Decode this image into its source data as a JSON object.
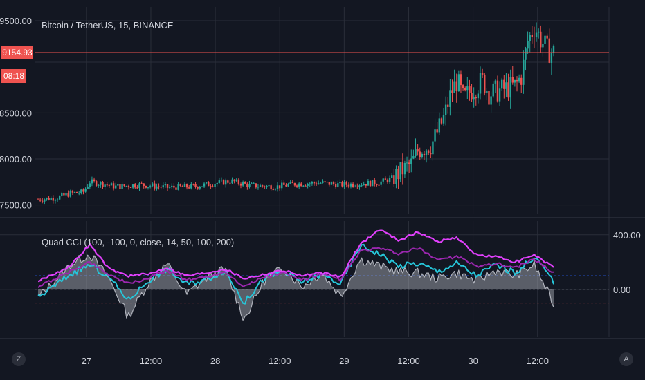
{
  "price_pane": {
    "title": "Bitcoin / TetherUS, 15, BINANCE",
    "last_price_label": "9154.93",
    "countdown_label": "08:18"
  },
  "indicator_pane": {
    "title": "Quad CCI (100, -100, 0, close, 14, 50, 100, 200)"
  },
  "scale_buttons": {
    "left": "Z",
    "right": "A"
  },
  "colors": {
    "background": "#131722",
    "grid": "#2a2e39",
    "up_candle": "#26a69a",
    "down_candle": "#ef5350",
    "last_price_line": "#ef5350",
    "cci_14": "#b2b5be",
    "cci_50": "#26c6da",
    "cci_100": "#9c27b0",
    "cci_200": "#e040fb"
  },
  "chart_data": [
    {
      "type": "candlestick",
      "title": "Bitcoin / TetherUS, 15, BINANCE",
      "x_tick_labels": [
        "27",
        "12:00",
        "28",
        "12:00",
        "29",
        "12:00",
        "30",
        "12:00"
      ],
      "y_tick_labels": [
        "9500.00",
        "8500.00",
        "8000.00",
        "7500.00"
      ],
      "y_ticks": [
        9500,
        8500,
        8000,
        7500
      ],
      "ylim": [
        7400,
        9650
      ],
      "last_price": 9154.93,
      "price_path": [
        [
          0,
          7560
        ],
        [
          3,
          7580
        ],
        [
          5,
          7625
        ],
        [
          7,
          7640
        ],
        [
          8,
          7750
        ],
        [
          10,
          7730
        ],
        [
          12,
          7700
        ],
        [
          16,
          7720
        ],
        [
          20,
          7690
        ],
        [
          24,
          7700
        ],
        [
          27,
          7730
        ],
        [
          30,
          7760
        ],
        [
          33,
          7710
        ],
        [
          37,
          7700
        ],
        [
          40,
          7730
        ],
        [
          44,
          7740
        ],
        [
          47,
          7720
        ],
        [
          50,
          7730
        ],
        [
          53,
          7745
        ],
        [
          55,
          7790
        ],
        [
          57,
          7900
        ],
        [
          58,
          7950
        ],
        [
          59,
          8100
        ],
        [
          61,
          8150
        ],
        [
          62,
          8300
        ],
        [
          63,
          8450
        ],
        [
          64,
          8700
        ],
        [
          65,
          8850
        ],
        [
          66,
          8650
        ],
        [
          67,
          8730
        ],
        [
          69,
          8850
        ],
        [
          70,
          8710
        ],
        [
          72,
          8750
        ],
        [
          74,
          8790
        ],
        [
          75,
          8900
        ],
        [
          76,
          9280
        ],
        [
          77,
          9440
        ],
        [
          78,
          9300
        ],
        [
          79,
          9180
        ],
        [
          80,
          9160
        ]
      ],
      "grid": true
    },
    {
      "type": "line",
      "title": "Quad CCI (100, -100, 0, close, 14, 50, 100, 200)",
      "y_tick_labels": [
        "400.00",
        "0.00"
      ],
      "y_ticks": [
        400,
        0
      ],
      "reference_lines": [
        100,
        0,
        -100
      ],
      "ylim": [
        -350,
        500
      ],
      "grid": true,
      "series": [
        {
          "name": "CCI 14",
          "values": [
            [
              0,
              -60
            ],
            [
              5,
              180
            ],
            [
              8,
              260
            ],
            [
              11,
              80
            ],
            [
              14,
              -200
            ],
            [
              17,
              40
            ],
            [
              20,
              190
            ],
            [
              23,
              -40
            ],
            [
              26,
              80
            ],
            [
              29,
              150
            ],
            [
              32,
              -220
            ],
            [
              35,
              60
            ],
            [
              38,
              160
            ],
            [
              41,
              20
            ],
            [
              44,
              120
            ],
            [
              47,
              -50
            ],
            [
              50,
              220
            ],
            [
              53,
              170
            ],
            [
              56,
              130
            ],
            [
              59,
              120
            ],
            [
              62,
              80
            ],
            [
              65,
              120
            ],
            [
              68,
              60
            ],
            [
              71,
              140
            ],
            [
              74,
              100
            ],
            [
              77,
              180
            ],
            [
              80,
              -110
            ]
          ]
        },
        {
          "name": "CCI 50",
          "values": [
            [
              0,
              -60
            ],
            [
              5,
              110
            ],
            [
              8,
              180
            ],
            [
              11,
              90
            ],
            [
              14,
              -80
            ],
            [
              17,
              60
            ],
            [
              20,
              150
            ],
            [
              23,
              40
            ],
            [
              26,
              70
            ],
            [
              29,
              140
            ],
            [
              32,
              -100
            ],
            [
              35,
              80
            ],
            [
              38,
              130
            ],
            [
              41,
              50
            ],
            [
              44,
              110
            ],
            [
              47,
              40
            ],
            [
              50,
              320
            ],
            [
              53,
              260
            ],
            [
              56,
              170
            ],
            [
              59,
              190
            ],
            [
              62,
              130
            ],
            [
              65,
              190
            ],
            [
              68,
              100
            ],
            [
              71,
              180
            ],
            [
              74,
              120
            ],
            [
              77,
              240
            ],
            [
              80,
              60
            ]
          ]
        },
        {
          "name": "CCI 100",
          "values": [
            [
              0,
              20
            ],
            [
              5,
              130
            ],
            [
              8,
              200
            ],
            [
              11,
              110
            ],
            [
              14,
              40
            ],
            [
              17,
              80
            ],
            [
              20,
              140
            ],
            [
              23,
              70
            ],
            [
              26,
              90
            ],
            [
              29,
              130
            ],
            [
              32,
              20
            ],
            [
              35,
              90
            ],
            [
              38,
              120
            ],
            [
              41,
              70
            ],
            [
              44,
              110
            ],
            [
              47,
              70
            ],
            [
              50,
              280
            ],
            [
              53,
              300
            ],
            [
              56,
              260
            ],
            [
              59,
              300
            ],
            [
              62,
              220
            ],
            [
              65,
              240
            ],
            [
              68,
              170
            ],
            [
              71,
              190
            ],
            [
              74,
              160
            ],
            [
              77,
              220
            ],
            [
              80,
              120
            ]
          ]
        },
        {
          "name": "CCI 200",
          "values": [
            [
              0,
              60
            ],
            [
              5,
              170
            ],
            [
              8,
              330
            ],
            [
              11,
              150
            ],
            [
              14,
              100
            ],
            [
              17,
              110
            ],
            [
              20,
              160
            ],
            [
              23,
              100
            ],
            [
              26,
              120
            ],
            [
              29,
              150
            ],
            [
              32,
              80
            ],
            [
              35,
              110
            ],
            [
              38,
              140
            ],
            [
              41,
              100
            ],
            [
              44,
              120
            ],
            [
              47,
              90
            ],
            [
              50,
              330
            ],
            [
              53,
              440
            ],
            [
              56,
              360
            ],
            [
              59,
              420
            ],
            [
              62,
              350
            ],
            [
              65,
              380
            ],
            [
              68,
              250
            ],
            [
              71,
              240
            ],
            [
              74,
              200
            ],
            [
              77,
              250
            ],
            [
              80,
              160
            ]
          ]
        }
      ]
    }
  ]
}
